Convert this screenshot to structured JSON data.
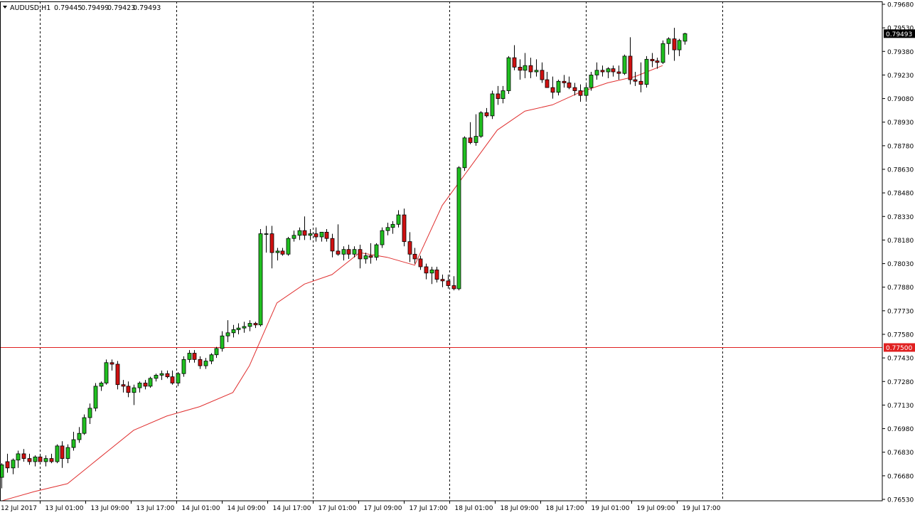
{
  "chart_data": {
    "type": "candlestick",
    "symbol_header": "AUDUSD,H1",
    "ohlc_header": [
      "0.79445",
      "0.79499",
      "0.79423",
      "0.79493"
    ],
    "y_ticks": [
      "0.79680",
      "0.79530",
      "0.79380",
      "0.79230",
      "0.79080",
      "0.78930",
      "0.78780",
      "0.78630",
      "0.78480",
      "0.78330",
      "0.78180",
      "0.78030",
      "0.77880",
      "0.77730",
      "0.77580",
      "0.77430",
      "0.77280",
      "0.77130",
      "0.76980",
      "0.76830",
      "0.76680",
      "0.76530"
    ],
    "x_ticks": [
      "12 Jul 2017",
      "13 Jul 01:00",
      "13 Jul 09:00",
      "13 Jul 17:00",
      "14 Jul 01:00",
      "14 Jul 09:00",
      "14 Jul 17:00",
      "17 Jul 01:00",
      "17 Jul 09:00",
      "17 Jul 17:00",
      "18 Jul 01:00",
      "18 Jul 09:00",
      "18 Jul 17:00",
      "19 Jul 01:00",
      "19 Jul 09:00",
      "19 Jul 17:00"
    ],
    "ylim": [
      0.7652,
      0.7969
    ],
    "current_price": "0.79493",
    "horizontal_level": "0.77500",
    "colors": {
      "bull": "#20c020",
      "bear": "#d01010",
      "ma": "#e03030",
      "level": "#e02020",
      "current_bg": "#000000"
    },
    "moving_average": {
      "label": "",
      "points": [
        [
          0.0,
          0.7652
        ],
        [
          6.0,
          0.7658
        ],
        [
          12.0,
          0.7663
        ],
        [
          18.0,
          0.768
        ],
        [
          24.0,
          0.7697
        ],
        [
          30.0,
          0.7706
        ],
        [
          36.0,
          0.7712
        ],
        [
          42.0,
          0.7721
        ],
        [
          45.0,
          0.7738
        ],
        [
          50.0,
          0.7778
        ],
        [
          55.0,
          0.779
        ],
        [
          60.0,
          0.7796
        ],
        [
          65.0,
          0.781
        ],
        [
          70.0,
          0.7807
        ],
        [
          75.0,
          0.7802
        ],
        [
          80.0,
          0.784
        ],
        [
          90.0,
          0.7888
        ],
        [
          95.0,
          0.79
        ],
        [
          100.0,
          0.7904
        ],
        [
          105.0,
          0.7912
        ],
        [
          110.0,
          0.7918
        ],
        [
          115.0,
          0.7922
        ],
        [
          120.0,
          0.7929
        ]
      ]
    },
    "candles": [
      {
        "o": 0.7667,
        "h": 0.7676,
        "l": 0.766,
        "c": 0.7675
      },
      {
        "o": 0.7677,
        "h": 0.7682,
        "l": 0.767,
        "c": 0.7673
      },
      {
        "o": 0.7673,
        "h": 0.7679,
        "l": 0.7669,
        "c": 0.7678
      },
      {
        "o": 0.7678,
        "h": 0.7684,
        "l": 0.7673,
        "c": 0.7682
      },
      {
        "o": 0.7682,
        "h": 0.7685,
        "l": 0.7677,
        "c": 0.7679
      },
      {
        "o": 0.7679,
        "h": 0.7682,
        "l": 0.7675,
        "c": 0.7677
      },
      {
        "o": 0.7677,
        "h": 0.7681,
        "l": 0.7674,
        "c": 0.768
      },
      {
        "o": 0.768,
        "h": 0.7682,
        "l": 0.7677,
        "c": 0.7677
      },
      {
        "o": 0.7677,
        "h": 0.7681,
        "l": 0.7674,
        "c": 0.7679
      },
      {
        "o": 0.7679,
        "h": 0.7682,
        "l": 0.7676,
        "c": 0.7677
      },
      {
        "o": 0.7677,
        "h": 0.7688,
        "l": 0.7676,
        "c": 0.7687
      },
      {
        "o": 0.7687,
        "h": 0.769,
        "l": 0.7673,
        "c": 0.7679
      },
      {
        "o": 0.7679,
        "h": 0.7688,
        "l": 0.7676,
        "c": 0.7686
      },
      {
        "o": 0.7686,
        "h": 0.7696,
        "l": 0.7684,
        "c": 0.7691
      },
      {
        "o": 0.7691,
        "h": 0.7699,
        "l": 0.7689,
        "c": 0.7695
      },
      {
        "o": 0.7695,
        "h": 0.7707,
        "l": 0.7694,
        "c": 0.7705
      },
      {
        "o": 0.7705,
        "h": 0.7714,
        "l": 0.7701,
        "c": 0.7711
      },
      {
        "o": 0.7711,
        "h": 0.7727,
        "l": 0.7709,
        "c": 0.7725
      },
      {
        "o": 0.7725,
        "h": 0.7728,
        "l": 0.7722,
        "c": 0.7727
      },
      {
        "o": 0.7727,
        "h": 0.7742,
        "l": 0.7726,
        "c": 0.774
      },
      {
        "o": 0.774,
        "h": 0.7742,
        "l": 0.7735,
        "c": 0.7739
      },
      {
        "o": 0.7739,
        "h": 0.7741,
        "l": 0.7723,
        "c": 0.7726
      },
      {
        "o": 0.7726,
        "h": 0.7729,
        "l": 0.7721,
        "c": 0.7725
      },
      {
        "o": 0.7725,
        "h": 0.7728,
        "l": 0.7718,
        "c": 0.7721
      },
      {
        "o": 0.7721,
        "h": 0.7726,
        "l": 0.7713,
        "c": 0.7724
      },
      {
        "o": 0.7724,
        "h": 0.7728,
        "l": 0.7721,
        "c": 0.7727
      },
      {
        "o": 0.7727,
        "h": 0.7729,
        "l": 0.7723,
        "c": 0.7725
      },
      {
        "o": 0.7725,
        "h": 0.7731,
        "l": 0.7724,
        "c": 0.773
      },
      {
        "o": 0.773,
        "h": 0.7733,
        "l": 0.7728,
        "c": 0.7732
      },
      {
        "o": 0.7732,
        "h": 0.7735,
        "l": 0.7729,
        "c": 0.7733
      },
      {
        "o": 0.7733,
        "h": 0.7735,
        "l": 0.773,
        "c": 0.7731
      },
      {
        "o": 0.7731,
        "h": 0.7735,
        "l": 0.7726,
        "c": 0.7727
      },
      {
        "o": 0.7727,
        "h": 0.7734,
        "l": 0.7725,
        "c": 0.7733
      },
      {
        "o": 0.7733,
        "h": 0.7744,
        "l": 0.7731,
        "c": 0.7742
      },
      {
        "o": 0.7742,
        "h": 0.7748,
        "l": 0.774,
        "c": 0.7746
      },
      {
        "o": 0.7746,
        "h": 0.7748,
        "l": 0.774,
        "c": 0.7742
      },
      {
        "o": 0.7742,
        "h": 0.7744,
        "l": 0.7736,
        "c": 0.7738
      },
      {
        "o": 0.7738,
        "h": 0.7743,
        "l": 0.7736,
        "c": 0.7741
      },
      {
        "o": 0.7741,
        "h": 0.7746,
        "l": 0.7739,
        "c": 0.7745
      },
      {
        "o": 0.7745,
        "h": 0.775,
        "l": 0.7743,
        "c": 0.7749
      },
      {
        "o": 0.7749,
        "h": 0.776,
        "l": 0.7747,
        "c": 0.7757
      },
      {
        "o": 0.7757,
        "h": 0.7767,
        "l": 0.7753,
        "c": 0.7759
      },
      {
        "o": 0.7759,
        "h": 0.7764,
        "l": 0.7756,
        "c": 0.7761
      },
      {
        "o": 0.7761,
        "h": 0.7765,
        "l": 0.7758,
        "c": 0.7762
      },
      {
        "o": 0.7762,
        "h": 0.7766,
        "l": 0.7759,
        "c": 0.7763
      },
      {
        "o": 0.7763,
        "h": 0.7767,
        "l": 0.776,
        "c": 0.7765
      },
      {
        "o": 0.7765,
        "h": 0.7766,
        "l": 0.7762,
        "c": 0.7764
      },
      {
        "o": 0.7764,
        "h": 0.7825,
        "l": 0.7763,
        "c": 0.7822
      },
      {
        "o": 0.7822,
        "h": 0.7827,
        "l": 0.781,
        "c": 0.7822
      },
      {
        "o": 0.7822,
        "h": 0.7827,
        "l": 0.78,
        "c": 0.781
      },
      {
        "o": 0.781,
        "h": 0.7813,
        "l": 0.7805,
        "c": 0.7811
      },
      {
        "o": 0.7811,
        "h": 0.7813,
        "l": 0.7808,
        "c": 0.7809
      },
      {
        "o": 0.7809,
        "h": 0.782,
        "l": 0.7808,
        "c": 0.7819
      },
      {
        "o": 0.7819,
        "h": 0.7824,
        "l": 0.7817,
        "c": 0.7821
      },
      {
        "o": 0.7821,
        "h": 0.7826,
        "l": 0.7818,
        "c": 0.7824
      },
      {
        "o": 0.7824,
        "h": 0.7833,
        "l": 0.7818,
        "c": 0.7821
      },
      {
        "o": 0.7821,
        "h": 0.7825,
        "l": 0.7818,
        "c": 0.7822
      },
      {
        "o": 0.7822,
        "h": 0.7826,
        "l": 0.7817,
        "c": 0.782
      },
      {
        "o": 0.782,
        "h": 0.7823,
        "l": 0.7817,
        "c": 0.7823
      },
      {
        "o": 0.7823,
        "h": 0.7825,
        "l": 0.7817,
        "c": 0.7819
      },
      {
        "o": 0.7819,
        "h": 0.7822,
        "l": 0.7807,
        "c": 0.7811
      },
      {
        "o": 0.7811,
        "h": 0.7828,
        "l": 0.7808,
        "c": 0.7809
      },
      {
        "o": 0.7809,
        "h": 0.7814,
        "l": 0.7805,
        "c": 0.7812
      },
      {
        "o": 0.7812,
        "h": 0.7815,
        "l": 0.7806,
        "c": 0.7809
      },
      {
        "o": 0.7809,
        "h": 0.7814,
        "l": 0.7807,
        "c": 0.7812
      },
      {
        "o": 0.7812,
        "h": 0.7815,
        "l": 0.78,
        "c": 0.7806
      },
      {
        "o": 0.7806,
        "h": 0.781,
        "l": 0.7803,
        "c": 0.7808
      },
      {
        "o": 0.7808,
        "h": 0.7816,
        "l": 0.7803,
        "c": 0.7807
      },
      {
        "o": 0.7807,
        "h": 0.7816,
        "l": 0.7805,
        "c": 0.7815
      },
      {
        "o": 0.7815,
        "h": 0.7826,
        "l": 0.7813,
        "c": 0.7824
      },
      {
        "o": 0.7824,
        "h": 0.7829,
        "l": 0.7821,
        "c": 0.7826
      },
      {
        "o": 0.7826,
        "h": 0.783,
        "l": 0.7822,
        "c": 0.7828
      },
      {
        "o": 0.7828,
        "h": 0.7837,
        "l": 0.7826,
        "c": 0.7834
      },
      {
        "o": 0.7834,
        "h": 0.7838,
        "l": 0.7814,
        "c": 0.7817
      },
      {
        "o": 0.7817,
        "h": 0.7823,
        "l": 0.7804,
        "c": 0.7809
      },
      {
        "o": 0.7809,
        "h": 0.7813,
        "l": 0.7803,
        "c": 0.7806
      },
      {
        "o": 0.7806,
        "h": 0.7808,
        "l": 0.7799,
        "c": 0.7801
      },
      {
        "o": 0.7801,
        "h": 0.7803,
        "l": 0.7793,
        "c": 0.7797
      },
      {
        "o": 0.7797,
        "h": 0.7801,
        "l": 0.779,
        "c": 0.7799
      },
      {
        "o": 0.7799,
        "h": 0.7801,
        "l": 0.7791,
        "c": 0.7793
      },
      {
        "o": 0.7793,
        "h": 0.7796,
        "l": 0.7788,
        "c": 0.7792
      },
      {
        "o": 0.7792,
        "h": 0.7796,
        "l": 0.7787,
        "c": 0.7789
      },
      {
        "o": 0.7789,
        "h": 0.7795,
        "l": 0.7786,
        "c": 0.7787
      },
      {
        "o": 0.7787,
        "h": 0.7865,
        "l": 0.7786,
        "c": 0.7864
      },
      {
        "o": 0.7864,
        "h": 0.7884,
        "l": 0.7862,
        "c": 0.7883
      },
      {
        "o": 0.7883,
        "h": 0.7893,
        "l": 0.7879,
        "c": 0.788
      },
      {
        "o": 0.788,
        "h": 0.7898,
        "l": 0.7878,
        "c": 0.7884
      },
      {
        "o": 0.7884,
        "h": 0.79,
        "l": 0.7883,
        "c": 0.7899
      },
      {
        "o": 0.7899,
        "h": 0.7902,
        "l": 0.7896,
        "c": 0.7897
      },
      {
        "o": 0.7897,
        "h": 0.7913,
        "l": 0.7895,
        "c": 0.7911
      },
      {
        "o": 0.7911,
        "h": 0.7916,
        "l": 0.7904,
        "c": 0.7908
      },
      {
        "o": 0.7908,
        "h": 0.7916,
        "l": 0.7905,
        "c": 0.7913
      },
      {
        "o": 0.7913,
        "h": 0.7935,
        "l": 0.7911,
        "c": 0.7934
      },
      {
        "o": 0.7934,
        "h": 0.7942,
        "l": 0.7926,
        "c": 0.7928
      },
      {
        "o": 0.7928,
        "h": 0.7933,
        "l": 0.792,
        "c": 0.7926
      },
      {
        "o": 0.7926,
        "h": 0.7937,
        "l": 0.7921,
        "c": 0.7929
      },
      {
        "o": 0.7929,
        "h": 0.7934,
        "l": 0.7921,
        "c": 0.7925
      },
      {
        "o": 0.7925,
        "h": 0.7933,
        "l": 0.7922,
        "c": 0.7926
      },
      {
        "o": 0.7926,
        "h": 0.7931,
        "l": 0.7918,
        "c": 0.792
      },
      {
        "o": 0.792,
        "h": 0.7925,
        "l": 0.7916,
        "c": 0.7915
      },
      {
        "o": 0.7915,
        "h": 0.7922,
        "l": 0.7908,
        "c": 0.7912
      },
      {
        "o": 0.7912,
        "h": 0.792,
        "l": 0.791,
        "c": 0.7919
      },
      {
        "o": 0.7919,
        "h": 0.7923,
        "l": 0.7915,
        "c": 0.7918
      },
      {
        "o": 0.7918,
        "h": 0.7922,
        "l": 0.7914,
        "c": 0.7915
      },
      {
        "o": 0.7915,
        "h": 0.7918,
        "l": 0.791,
        "c": 0.7913
      },
      {
        "o": 0.7913,
        "h": 0.7917,
        "l": 0.7906,
        "c": 0.791
      },
      {
        "o": 0.791,
        "h": 0.7918,
        "l": 0.7907,
        "c": 0.7915
      },
      {
        "o": 0.7915,
        "h": 0.7925,
        "l": 0.7913,
        "c": 0.7923
      },
      {
        "o": 0.7923,
        "h": 0.7931,
        "l": 0.792,
        "c": 0.7926
      },
      {
        "o": 0.7926,
        "h": 0.7929,
        "l": 0.7922,
        "c": 0.7925
      },
      {
        "o": 0.7925,
        "h": 0.7928,
        "l": 0.7921,
        "c": 0.7927
      },
      {
        "o": 0.7927,
        "h": 0.7929,
        "l": 0.7922,
        "c": 0.7925
      },
      {
        "o": 0.7925,
        "h": 0.7929,
        "l": 0.792,
        "c": 0.7924
      },
      {
        "o": 0.7924,
        "h": 0.7936,
        "l": 0.7923,
        "c": 0.7935
      },
      {
        "o": 0.7935,
        "h": 0.7947,
        "l": 0.7917,
        "c": 0.792
      },
      {
        "o": 0.792,
        "h": 0.7925,
        "l": 0.7916,
        "c": 0.7919
      },
      {
        "o": 0.7919,
        "h": 0.7931,
        "l": 0.7912,
        "c": 0.7917
      },
      {
        "o": 0.7917,
        "h": 0.7935,
        "l": 0.7915,
        "c": 0.7933
      },
      {
        "o": 0.7933,
        "h": 0.7937,
        "l": 0.7928,
        "c": 0.7932
      },
      {
        "o": 0.7932,
        "h": 0.7934,
        "l": 0.7927,
        "c": 0.7931
      },
      {
        "o": 0.7931,
        "h": 0.7945,
        "l": 0.793,
        "c": 0.7943
      },
      {
        "o": 0.7943,
        "h": 0.7947,
        "l": 0.7936,
        "c": 0.7946
      },
      {
        "o": 0.7946,
        "h": 0.7953,
        "l": 0.7932,
        "c": 0.7939
      },
      {
        "o": 0.7939,
        "h": 0.7946,
        "l": 0.7935,
        "c": 0.7945
      },
      {
        "o": 0.79445,
        "h": 0.79499,
        "l": 0.79423,
        "c": 0.79493
      }
    ]
  }
}
